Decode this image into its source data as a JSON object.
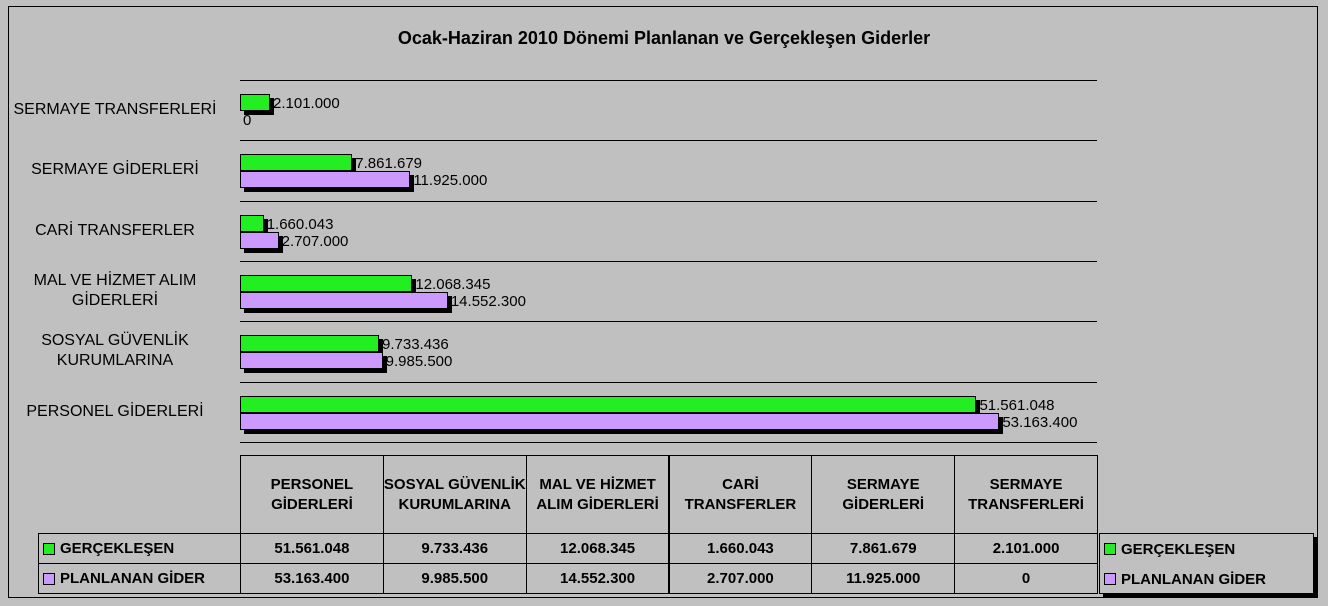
{
  "chart_data": {
    "type": "bar",
    "orientation": "horizontal",
    "title": "Ocak-Haziran 2010 Dönemi Planlanan ve Gerçekleşen Giderler",
    "categories": [
      "PERSONEL GİDERLERİ",
      "SOSYAL GÜVENLİK KURUMLARINA",
      "MAL VE HİZMET ALIM GİDERLERİ",
      "CARİ TRANSFERLER",
      "SERMAYE GİDERLERİ",
      "SERMAYE TRANSFERLERİ"
    ],
    "series": [
      {
        "name": "GERÇEKLEŞEN",
        "color": "#22ee22",
        "values": [
          51561048,
          9733436,
          12068345,
          1660043,
          7861679,
          2101000
        ],
        "value_labels": [
          "51.561.048",
          "9.733.436",
          "12.068.345",
          "1.660.043",
          "7.861.679",
          "2.101.000"
        ]
      },
      {
        "name": "PLANLANAN GİDER",
        "color": "#cc99ff",
        "values": [
          53163400,
          9985500,
          14552300,
          2707000,
          11925000,
          0
        ],
        "value_labels": [
          "53.163.400",
          "9.985.500",
          "14.552.300",
          "2.707.000",
          "11.925.000",
          "0"
        ]
      }
    ],
    "xlim": [
      0,
      60000000
    ],
    "legend": "right"
  }
}
